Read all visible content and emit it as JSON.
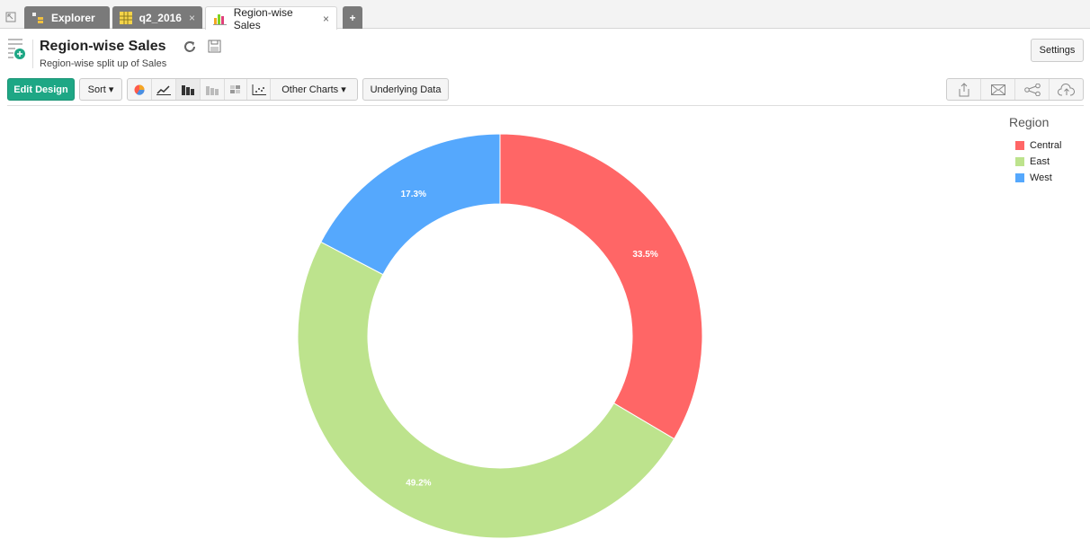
{
  "tabs": [
    {
      "label": "Explorer",
      "icon": "explorer-icon"
    },
    {
      "label": "q2_2016",
      "icon": "table-icon",
      "close": "×"
    },
    {
      "label": "Region-wise Sales",
      "icon": "chart-icon",
      "close": "×",
      "active": true
    }
  ],
  "new_tab": "+",
  "header": {
    "title": "Region-wise Sales",
    "subtitle": "Region-wise split up of Sales",
    "settings": "Settings"
  },
  "toolbar": {
    "edit_design": "Edit Design",
    "sort": "Sort ▾",
    "other_charts": "Other Charts ▾",
    "underlying_data": "Underlying Data"
  },
  "chart_data": {
    "type": "pie",
    "variant": "donut",
    "legend_title": "Region",
    "legend_position": "top-right",
    "categories": [
      "Central",
      "East",
      "West"
    ],
    "values": [
      33.5,
      49.2,
      17.3
    ],
    "labels": [
      "33.5%",
      "49.2%",
      "17.3%"
    ],
    "colors": [
      "#ff6666",
      "#bde38d",
      "#55a8fd"
    ]
  }
}
